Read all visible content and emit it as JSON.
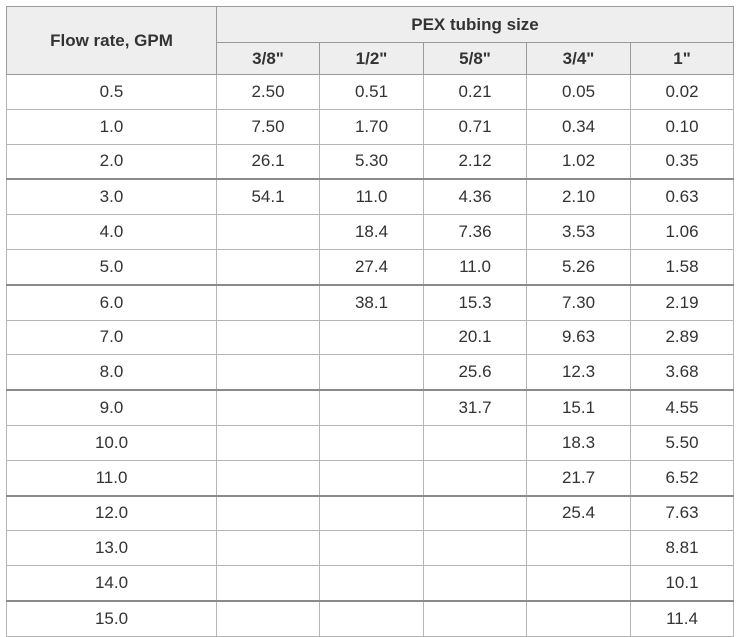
{
  "table": {
    "flow_header": "Flow rate, GPM",
    "size_header": "PEX tubing size",
    "sizes": [
      "3/8\"",
      "1/2\"",
      "5/8\"",
      "3/4\"",
      "1\""
    ],
    "rows": [
      {
        "flow": "0.5",
        "cells": [
          "2.50",
          "0.51",
          "0.21",
          "0.05",
          "0.02"
        ]
      },
      {
        "flow": "1.0",
        "cells": [
          "7.50",
          "1.70",
          "0.71",
          "0.34",
          "0.10"
        ]
      },
      {
        "flow": "2.0",
        "cells": [
          "26.1",
          "5.30",
          "2.12",
          "1.02",
          "0.35"
        ]
      },
      {
        "flow": "3.0",
        "cells": [
          "54.1",
          "11.0",
          "4.36",
          "2.10",
          "0.63"
        ]
      },
      {
        "flow": "4.0",
        "cells": [
          "",
          "18.4",
          "7.36",
          "3.53",
          "1.06"
        ]
      },
      {
        "flow": "5.0",
        "cells": [
          "",
          "27.4",
          "11.0",
          "5.26",
          "1.58"
        ]
      },
      {
        "flow": "6.0",
        "cells": [
          "",
          "38.1",
          "15.3",
          "7.30",
          "2.19"
        ]
      },
      {
        "flow": "7.0",
        "cells": [
          "",
          "",
          "20.1",
          "9.63",
          "2.89"
        ]
      },
      {
        "flow": "8.0",
        "cells": [
          "",
          "",
          "25.6",
          "12.3",
          "3.68"
        ]
      },
      {
        "flow": "9.0",
        "cells": [
          "",
          "",
          "31.7",
          "15.1",
          "4.55"
        ]
      },
      {
        "flow": "10.0",
        "cells": [
          "",
          "",
          "",
          "18.3",
          "5.50"
        ]
      },
      {
        "flow": "11.0",
        "cells": [
          "",
          "",
          "",
          "21.7",
          "6.52"
        ]
      },
      {
        "flow": "12.0",
        "cells": [
          "",
          "",
          "",
          "25.4",
          "7.63"
        ]
      },
      {
        "flow": "13.0",
        "cells": [
          "",
          "",
          "",
          "",
          "8.81"
        ]
      },
      {
        "flow": "14.0",
        "cells": [
          "",
          "",
          "",
          "",
          "10.1"
        ]
      },
      {
        "flow": "15.0",
        "cells": [
          "",
          "",
          "",
          "",
          "11.4"
        ]
      }
    ]
  }
}
